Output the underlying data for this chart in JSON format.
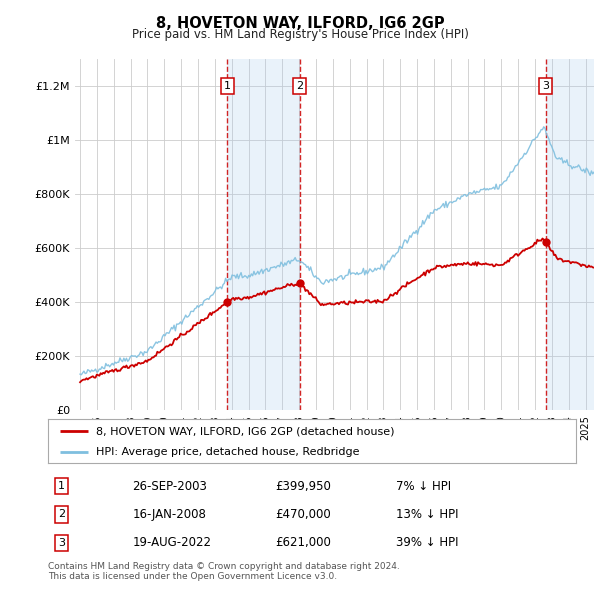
{
  "title": "8, HOVETON WAY, ILFORD, IG6 2GP",
  "subtitle": "Price paid vs. HM Land Registry's House Price Index (HPI)",
  "ylim": [
    0,
    1300000
  ],
  "yticks": [
    0,
    200000,
    400000,
    600000,
    800000,
    1000000,
    1200000
  ],
  "ytick_labels": [
    "£0",
    "£200K",
    "£400K",
    "£600K",
    "£800K",
    "£1M",
    "£1.2M"
  ],
  "hpi_color": "#7fbfdf",
  "price_color": "#cc0000",
  "vline_color": "#cc0000",
  "shade_color": "#ddeeff",
  "xlim_left": 1994.7,
  "xlim_right": 2025.5,
  "transactions": [
    {
      "label": "1",
      "year_float": 2003.74,
      "price": 399950,
      "date": "26-SEP-2003",
      "pct": "7%",
      "dir": "↓"
    },
    {
      "label": "2",
      "year_float": 2008.04,
      "price": 470000,
      "date": "16-JAN-2008",
      "pct": "13%",
      "dir": "↓"
    },
    {
      "label": "3",
      "year_float": 2022.63,
      "price": 621000,
      "date": "19-AUG-2022",
      "pct": "39%",
      "dir": "↓"
    }
  ],
  "legend_price_label": "8, HOVETON WAY, ILFORD, IG6 2GP (detached house)",
  "legend_hpi_label": "HPI: Average price, detached house, Redbridge",
  "footer1": "Contains HM Land Registry data © Crown copyright and database right 2024.",
  "footer2": "This data is licensed under the Open Government Licence v3.0.",
  "background_color": "#ffffff",
  "grid_color": "#cccccc"
}
